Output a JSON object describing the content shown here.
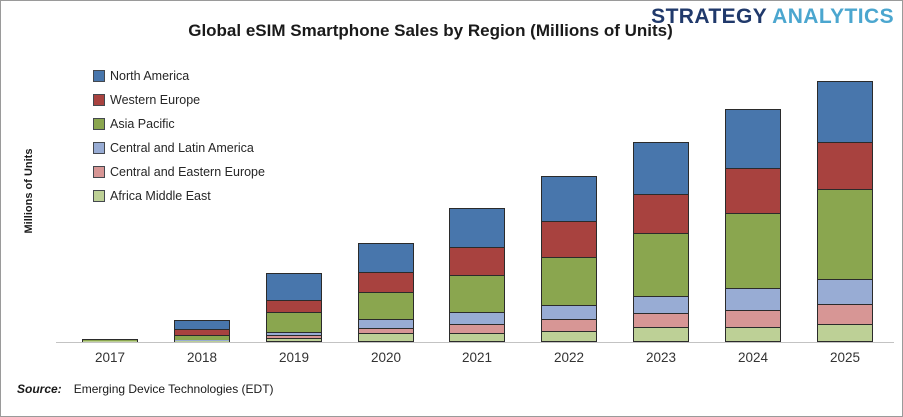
{
  "header": {
    "title": "Global eSIM Smartphone Sales by Region (Millions of Units)",
    "logo": {
      "word1": "STRATEGY",
      "word2": "ANALYTICS",
      "word1_color": "#20396b",
      "word2_color": "#4ba6cf"
    }
  },
  "footer": {
    "source_label": "Source:",
    "source_text": "Emerging Device Technologies (EDT)"
  },
  "chart_data": {
    "type": "bar",
    "stacked": true,
    "title": "Global eSIM Smartphone Sales by Region (Millions of Units)",
    "xlabel": "",
    "ylabel": "Millions of Units",
    "ylim": [
      0,
      510
    ],
    "grid": false,
    "y_tick_labels_shown": false,
    "legend_position": "upper-left",
    "categories": [
      "2017",
      "2018",
      "2019",
      "2020",
      "2021",
      "2022",
      "2023",
      "2024",
      "2025"
    ],
    "stack_order_bottom_to_top": [
      "Africa Middle East",
      "Central and Eastern Europe",
      "Central and Latin America",
      "Asia Pacific",
      "Western Europe",
      "North America"
    ],
    "series": [
      {
        "name": "North America",
        "color": "#4876ac",
        "values": [
          1,
          15,
          50,
          55,
          74,
          85,
          100,
          112,
          117
        ]
      },
      {
        "name": "Western Europe",
        "color": "#a8423f",
        "values": [
          0.5,
          10,
          23,
          37,
          52,
          69,
          74,
          87,
          89
        ]
      },
      {
        "name": "Asia Pacific",
        "color": "#8aa64f",
        "values": [
          0.5,
          8,
          36,
          51,
          71,
          92,
          121,
          144,
          174
        ]
      },
      {
        "name": "Central and Latin America",
        "color": "#98acd4",
        "values": [
          0.3,
          1,
          5,
          15,
          21,
          24,
          31,
          42,
          47
        ]
      },
      {
        "name": "Central and Eastern Europe",
        "color": "#d79695",
        "values": [
          0.3,
          0.5,
          3,
          9,
          17,
          22,
          26,
          31,
          38
        ]
      },
      {
        "name": "Africa Middle East",
        "color": "#bdd096",
        "values": [
          0.3,
          0.5,
          4,
          13,
          13,
          18,
          25,
          25,
          31
        ]
      }
    ],
    "totals_by_year": [
      2.9,
      35,
      121,
      180,
      248,
      310,
      377,
      441,
      496
    ]
  }
}
